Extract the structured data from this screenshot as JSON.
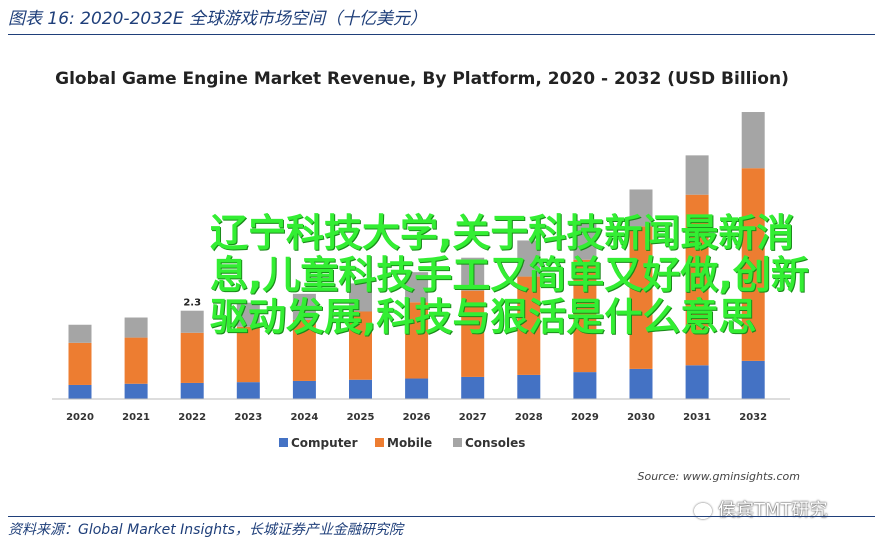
{
  "figure_title": "图表 16:  2020-2032E 全球游戏市场空间（十亿美元）",
  "footer": "资料来源：Global Market Insights，长城证券产业金融研究院",
  "overlay_text": "辽宁科技大学,关于科技新闻最新消息,儿童科技手工又简单又好做,创新驱动发展,科技与狠活是什么意思",
  "watermark": "侯宾TMT研究",
  "chart_data": {
    "type": "bar",
    "stacked": true,
    "title": "Global Game Engine Market Revenue, By Platform, 2020 - 2032 (USD Billion)",
    "source": "Source: www.gminsights.com",
    "categories": [
      "2020",
      "2021",
      "2022",
      "2023",
      "2024",
      "2025",
      "2026",
      "2027",
      "2028",
      "2029",
      "2030",
      "2031",
      "2032"
    ],
    "series": [
      {
        "name": "Computer",
        "color": "#4472c4",
        "values": [
          0.35,
          0.38,
          0.4,
          0.42,
          0.45,
          0.48,
          0.51,
          0.55,
          0.6,
          0.67,
          0.75,
          0.84,
          0.95
        ]
      },
      {
        "name": "Mobile",
        "color": "#ed7d31",
        "values": [
          1.05,
          1.15,
          1.25,
          1.38,
          1.52,
          1.7,
          1.9,
          2.15,
          2.45,
          2.8,
          3.55,
          4.25,
          4.8
        ]
      },
      {
        "name": "Consoles",
        "color": "#a5a5a5",
        "values": [
          0.45,
          0.5,
          0.55,
          0.6,
          0.65,
          0.7,
          0.75,
          0.82,
          0.9,
          0.98,
          0.92,
          0.98,
          1.4
        ]
      }
    ],
    "data_labels": [
      {
        "category": "2022",
        "text": "2.3"
      }
    ],
    "legend_position": "bottom",
    "grid": false,
    "ylim": [
      0,
      7.2
    ]
  }
}
